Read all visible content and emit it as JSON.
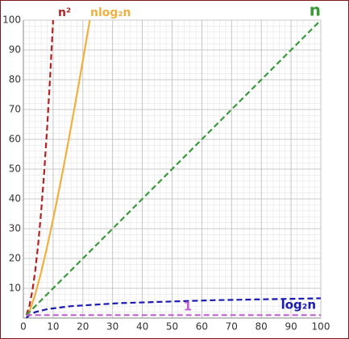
{
  "chart_data": {
    "type": "line",
    "xlim": [
      0,
      100
    ],
    "ylim": [
      0,
      100
    ],
    "xticks": [
      0,
      10,
      20,
      30,
      40,
      50,
      60,
      70,
      80,
      90,
      100
    ],
    "yticks": [
      10,
      20,
      30,
      40,
      50,
      60,
      70,
      80,
      90,
      100
    ],
    "grid": true,
    "series": [
      {
        "name": "n²",
        "color": "#b22222",
        "dashed": true,
        "x": [
          1,
          2,
          3,
          4,
          5,
          6,
          7,
          8,
          9,
          10
        ],
        "values": [
          1,
          4,
          9,
          16,
          25,
          36,
          49,
          64,
          81,
          100
        ]
      },
      {
        "name": "nlog₂n",
        "color": "#f0b040",
        "dashed": false,
        "x": [
          1,
          2,
          4,
          6,
          8,
          10,
          12,
          14,
          16,
          18,
          20,
          22,
          24
        ],
        "values": [
          0,
          2,
          8,
          15.5,
          24,
          33.2,
          43.0,
          53.3,
          64,
          75.1,
          86.4,
          98.1,
          110.0
        ]
      },
      {
        "name": "n",
        "color": "#3a9a3a",
        "dashed": true,
        "x": [
          1,
          100
        ],
        "values": [
          1,
          100
        ]
      },
      {
        "name": "log₂n",
        "color": "#1a1ab0",
        "dashed": true,
        "x": [
          1,
          2,
          4,
          8,
          16,
          32,
          64,
          100
        ],
        "values": [
          0,
          1,
          2,
          3,
          4,
          5,
          6,
          6.64
        ]
      },
      {
        "name": "1",
        "color": "#c060d0",
        "dashed": true,
        "x": [
          1,
          100
        ],
        "values": [
          1,
          1
        ]
      }
    ]
  }
}
